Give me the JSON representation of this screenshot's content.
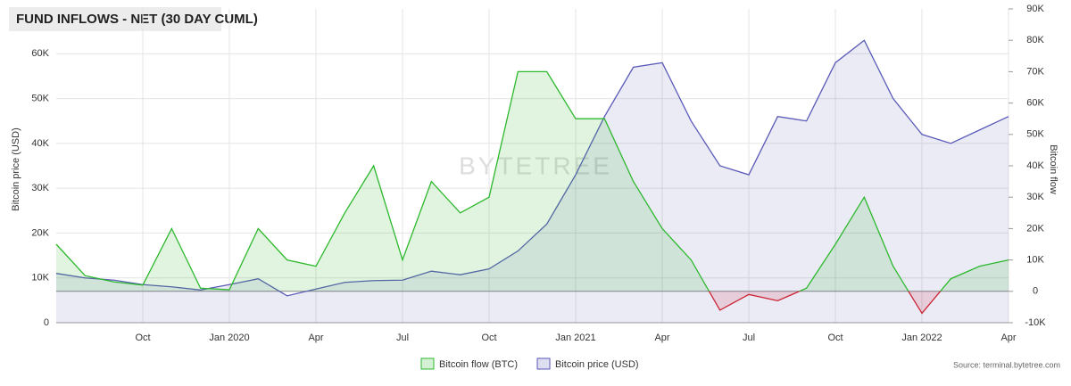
{
  "chart_data": {
    "type": "line",
    "title": "FUND INFLOWS - NET (30 DAY CUML)",
    "watermark": "BYTETREE",
    "source": "Source: terminal.bytetree.com",
    "ylabel": "Bitcoin price (USD)",
    "y2label": "Bitcoin flow",
    "x": [
      "2019-07",
      "2019-08",
      "2019-09",
      "2019-10",
      "2019-11",
      "2019-12",
      "2020-01",
      "2020-02",
      "2020-03",
      "2020-04",
      "2020-05",
      "2020-06",
      "2020-07",
      "2020-08",
      "2020-09",
      "2020-10",
      "2020-11",
      "2020-12",
      "2021-01",
      "2021-02",
      "2021-03",
      "2021-04",
      "2021-05",
      "2021-06",
      "2021-07",
      "2021-08",
      "2021-09",
      "2021-10",
      "2021-11",
      "2021-12",
      "2022-01",
      "2022-02",
      "2022-03",
      "2022-04"
    ],
    "xlim": [
      "2019-07",
      "2022-04"
    ],
    "xticks": [
      {
        "value": "2019-10",
        "label": "Oct"
      },
      {
        "value": "2020-01",
        "label": "Jan 2020"
      },
      {
        "value": "2020-04",
        "label": "Apr"
      },
      {
        "value": "2020-07",
        "label": "Jul"
      },
      {
        "value": "2020-10",
        "label": "Oct"
      },
      {
        "value": "2021-01",
        "label": "Jan 2021"
      },
      {
        "value": "2021-04",
        "label": "Apr"
      },
      {
        "value": "2021-07",
        "label": "Jul"
      },
      {
        "value": "2021-10",
        "label": "Oct"
      },
      {
        "value": "2022-01",
        "label": "Jan 2022"
      },
      {
        "value": "2022-04",
        "label": "Apr"
      }
    ],
    "ylim": [
      0,
      70000
    ],
    "yticks": [
      0,
      {
        "value": 10000,
        "label": "10K"
      },
      {
        "value": 20000,
        "label": "20K"
      },
      {
        "value": 30000,
        "label": "30K"
      },
      {
        "value": 40000,
        "label": "40K"
      },
      {
        "value": 50000,
        "label": "50K"
      },
      {
        "value": 60000,
        "label": "60K"
      }
    ],
    "y2lim": [
      -10000,
      90000
    ],
    "y2ticks": [
      {
        "value": -10000,
        "label": "-10K"
      },
      0,
      {
        "value": 10000,
        "label": "10K"
      },
      {
        "value": 20000,
        "label": "20K"
      },
      {
        "value": 30000,
        "label": "30K"
      },
      {
        "value": 40000,
        "label": "40K"
      },
      {
        "value": 50000,
        "label": "50K"
      },
      {
        "value": 60000,
        "label": "60K"
      },
      {
        "value": 70000,
        "label": "70K"
      },
      {
        "value": 80000,
        "label": "80K"
      },
      {
        "value": 90000,
        "label": "90K"
      }
    ],
    "grid": true,
    "legend": "bottom",
    "negative_color": "#cc2233",
    "series": [
      {
        "name": "Bitcoin flow (BTC)",
        "color": "#2db82d",
        "axis": "y2",
        "values": [
          15000,
          5000,
          3000,
          2000,
          20000,
          1000,
          500,
          20000,
          10000,
          8000,
          25000,
          40000,
          10000,
          35000,
          25000,
          30000,
          70000,
          70000,
          55000,
          55000,
          35000,
          20000,
          10000,
          -6000,
          -1000,
          -3000,
          1000,
          15000,
          30000,
          8000,
          -7000,
          4000,
          8000,
          10000
        ]
      },
      {
        "name": "Bitcoin price (USD)",
        "color": "#5a5ab8",
        "values": [
          11000,
          10000,
          9500,
          8500,
          8000,
          7300,
          8500,
          9800,
          6000,
          7500,
          9000,
          9400,
          9500,
          11500,
          10700,
          12000,
          16000,
          22000,
          33000,
          46000,
          57000,
          58000,
          45000,
          35000,
          33000,
          46000,
          45000,
          58000,
          63000,
          50000,
          42000,
          40000,
          43000,
          46000
        ]
      }
    ]
  }
}
